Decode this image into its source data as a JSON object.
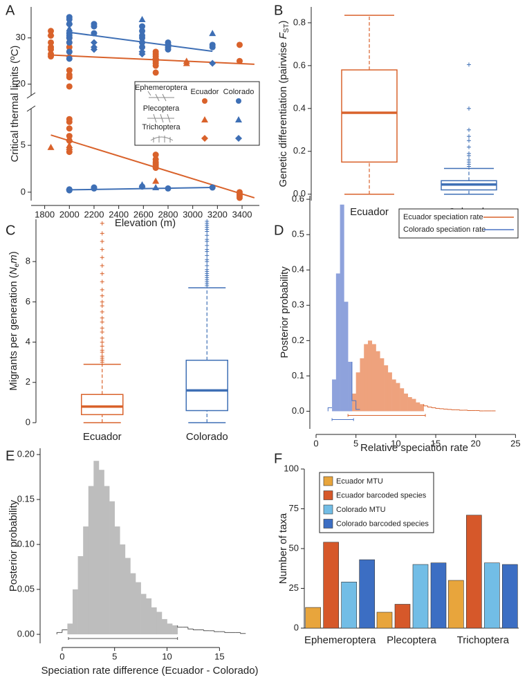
{
  "chart_data": [
    {
      "type": "scatter",
      "panel": "A",
      "xlabel": "Elevation (m)",
      "ylabel": "Critical thermal limits (ºC)",
      "xlim": [
        1690,
        3540
      ],
      "xticks": [
        1800,
        2000,
        2200,
        2400,
        2600,
        2800,
        3000,
        3200,
        3400
      ],
      "ylim": [
        -0.9,
        36.7
      ],
      "y_break": [
        8.7,
        18
      ],
      "yticks": [
        0,
        5,
        20,
        30
      ],
      "orders": [
        {
          "name": "Ephemeroptera",
          "marker": "circle"
        },
        {
          "name": "Plecoptera",
          "marker": "triangle"
        },
        {
          "name": "Trichoptera",
          "marker": "diamond"
        }
      ],
      "regions": [
        {
          "name": "Ecuador",
          "color": "#d9622b",
          "points": [
            {
              "x": [
                1850,
                1850,
                1850,
                1850,
                1850,
                1850,
                1850,
                2000,
                2000,
                2000,
                2000,
                2000,
                2000,
                2000,
                2000,
                2700,
                2700,
                2700,
                2700,
                2700,
                2700,
                2700,
                2700,
                3380,
                3380,
                2000,
                2000,
                2000,
                2000,
                2000,
                2000,
                2700,
                2700,
                2700,
                2700,
                2700,
                2700,
                3380,
                3380,
                3380,
                3380
              ],
              "y": [
                31.5,
                30.5,
                29,
                28,
                27.5,
                26.5,
                26,
                30,
                29,
                28,
                27,
                23,
                22,
                21.5,
                19.5,
                27,
                26.5,
                26,
                25.5,
                25,
                24.5,
                24,
                22.5,
                28.5,
                25,
                7.8,
                7.5,
                6.8,
                6,
                5.5,
                4.3,
                4,
                3.5,
                3.2,
                3,
                2.8,
                2.6,
                0,
                -0.2,
                -0.4,
                -0.6
              ]
            },
            {
              "x": [
                1850,
                1850,
                2000,
                2000,
                2700,
                2700,
                2950,
                2950
              ],
              "y": [
                31,
                4.8,
                5,
                4.8,
                26,
                1.2,
                25,
                24.5
              ]
            },
            {
              "x": [
                2000,
                2000
              ],
              "y": [
                26,
                5.5
              ]
            }
          ],
          "fits": [
            {
              "x": [
                1850,
                3500
              ],
              "y": [
                26.3,
                24.3
              ]
            },
            {
              "x": [
                1850,
                3500
              ],
              "y": [
                6.1,
                -0.6
              ]
            }
          ]
        },
        {
          "name": "Colorado",
          "color": "#3e6fb5",
          "points": [
            {
              "x": [
                2000,
                2000,
                2000,
                2000,
                2000,
                2000,
                2000,
                2000,
                2000,
                2200,
                2200,
                2200,
                2590,
                2590,
                2590,
                2590,
                2590,
                2590,
                2800,
                2800,
                2800,
                2800,
                3160,
                3160,
                2000,
                2000,
                2200,
                2200,
                2590,
                2800,
                3160
              ],
              "y": [
                34.5,
                34,
                33,
                31,
                30.5,
                30,
                29,
                27,
                25.5,
                33,
                32.5,
                31,
                32.5,
                31.5,
                30.5,
                30,
                29,
                28,
                29,
                28.5,
                28,
                27.5,
                28.5,
                28,
                0.2,
                0.3,
                0.4,
                0.5,
                0.6,
                0.4,
                0.5
              ]
            },
            {
              "x": [
                2000,
                2000,
                2590,
                3160,
                2590,
                2700
              ],
              "y": [
                33.5,
                32,
                34,
                31,
                0.8,
                0.5
              ]
            },
            {
              "x": [
                2200,
                2200,
                2200,
                2590,
                2590,
                2800,
                3160,
                2000
              ],
              "y": [
                29,
                28,
                27.5,
                27,
                26.5,
                28.5,
                24.5,
                0.25
              ]
            }
          ],
          "fits": [
            {
              "x": [
                2000,
                3160
              ],
              "y": [
                31.2,
                27.1
              ]
            },
            {
              "x": [
                2000,
                3160
              ],
              "y": [
                0.25,
                0.5
              ]
            }
          ]
        }
      ]
    },
    {
      "type": "box",
      "panel": "B",
      "ylabel_parts": [
        {
          "text": "Genetic differentiation (pairwise ",
          "style": "normal"
        },
        {
          "text": "F",
          "style": "italic"
        },
        {
          "text": "ST",
          "style": "sub"
        },
        {
          "text": ")",
          "style": "normal"
        }
      ],
      "ylim": [
        -0.03,
        0.874
      ],
      "yticks": [
        {
          "value": 0,
          "label": "0.0"
        },
        {
          "value": 0.2,
          "label": "0.2"
        },
        {
          "value": 0.4,
          "label": "0.4"
        },
        {
          "value": 0.6,
          "label": "0.6"
        },
        {
          "value": 0.8,
          "label": "0.8"
        }
      ],
      "categories": [
        "Ecuador",
        "Colorado"
      ],
      "boxes": [
        {
          "color": "#d9622b",
          "whisker_low": 0,
          "q1": 0.15,
          "median": 0.38,
          "q3": 0.58,
          "whisker_high": 0.835,
          "outliers": []
        },
        {
          "color": "#3e6fb5",
          "whisker_low": 0,
          "q1": 0.02,
          "median": 0.045,
          "q3": 0.063,
          "whisker_high": 0.12,
          "outliers": [
            0.13,
            0.14,
            0.15,
            0.16,
            0.18,
            0.19,
            0.22,
            0.25,
            0.27,
            0.3,
            0.4,
            0.605
          ]
        }
      ]
    },
    {
      "type": "box",
      "panel": "C",
      "ylabel_parts": [
        {
          "text": "Migrants per generation (",
          "style": "normal"
        },
        {
          "text": "N",
          "style": "italic"
        },
        {
          "text": "e",
          "style": "sub"
        },
        {
          "text": "m",
          "style": "italic"
        },
        {
          "text": ")",
          "style": "normal"
        }
      ],
      "ylim": [
        0,
        10.1
      ],
      "yticks": [
        0,
        2,
        4,
        6,
        8
      ],
      "categories": [
        "Ecuador",
        "Colorado"
      ],
      "boxes": [
        {
          "color": "#d9622b",
          "whisker_low": 0,
          "q1": 0.4,
          "median": 0.8,
          "q3": 1.4,
          "whisker_high": 2.9,
          "outliers": [
            3.0,
            3.1,
            3.2,
            3.3,
            3.5,
            3.6,
            3.8,
            4.0,
            4.2,
            4.5,
            4.7,
            5.0,
            5.2,
            5.5,
            5.8,
            6.0,
            6.3,
            6.6,
            7.0,
            7.4,
            7.8,
            8.2,
            8.6,
            9.0,
            9.4,
            9.9
          ]
        },
        {
          "color": "#3e6fb5",
          "whisker_low": 0,
          "q1": 0.6,
          "median": 1.6,
          "q3": 3.1,
          "whisker_high": 6.7,
          "outliers": [
            6.8,
            6.9,
            7.0,
            7.1,
            7.2,
            7.3,
            7.4,
            7.5,
            7.6,
            7.8,
            8.0,
            8.1,
            8.3,
            8.5,
            8.6,
            8.8,
            9.0,
            9.1,
            9.3,
            9.5,
            9.6,
            9.7,
            9.8,
            9.9,
            10.0
          ]
        }
      ]
    },
    {
      "type": "histogram",
      "panel": "D",
      "xlabel": "Relative speciation rate",
      "ylabel": "Posterior probability",
      "xlim": [
        -0.78,
        25.4
      ],
      "xticks": [
        0,
        5,
        10,
        15,
        20,
        25
      ],
      "ylim": [
        -0.05,
        0.61
      ],
      "yticks": [
        {
          "value": 0,
          "label": "0.0"
        },
        {
          "value": 0.1,
          "label": "0.1"
        },
        {
          "value": 0.2,
          "label": "0.2"
        },
        {
          "value": 0.3,
          "label": "0.3"
        },
        {
          "value": 0.4,
          "label": "0.4"
        },
        {
          "value": 0.5,
          "label": "0.5"
        },
        {
          "value": 0.6,
          "label": "0.6"
        }
      ],
      "legend": "upper right",
      "series": [
        {
          "name": "Ecuador speciation rate",
          "color": "#d9622b",
          "fill": "#eea27d",
          "bins": [
            4,
            4.5,
            5,
            5.5,
            6,
            6.5,
            7,
            7.5,
            8,
            8.5,
            9,
            9.5,
            10,
            10.5,
            11,
            11.5,
            12,
            12.5,
            13,
            13.5,
            14,
            14.5,
            15,
            15.5,
            16,
            16.5,
            17,
            17.5,
            18,
            18.5,
            19,
            19.5,
            20,
            20.5,
            21,
            21.5,
            22,
            22.5
          ],
          "counts": [
            0.01,
            0.05,
            0.11,
            0.15,
            0.19,
            0.2,
            0.19,
            0.17,
            0.15,
            0.13,
            0.11,
            0.09,
            0.08,
            0.065,
            0.05,
            0.04,
            0.035,
            0.025,
            0.02,
            0.015,
            0.012,
            0.01,
            0.008,
            0.007,
            0.006,
            0.005,
            0.004,
            0.004,
            0.003,
            0.003,
            0.002,
            0.002,
            0.002,
            0.001,
            0.001,
            0.001,
            0.001
          ],
          "hpd": [
            4.0,
            13.7
          ]
        },
        {
          "name": "Colorado speciation rate",
          "color": "#4a72c4",
          "fill": "#8ea2dc",
          "bins": [
            1.5,
            2,
            2.5,
            3,
            3.5,
            4,
            4.5,
            5,
            5.5
          ],
          "counts": [
            0.01,
            0.09,
            0.39,
            0.585,
            0.31,
            0.14,
            0.03,
            0.005
          ],
          "hpd": [
            2.0,
            4.7
          ]
        }
      ]
    },
    {
      "type": "histogram",
      "panel": "E",
      "xlabel": "Speciation rate difference (Ecuador - Colorado)",
      "ylabel": "Posterior probability",
      "xlim": [
        -2.1,
        18.8
      ],
      "xticks": [
        0,
        5,
        10,
        15
      ],
      "ylim": [
        -0.01,
        0.207
      ],
      "yticks": [
        {
          "value": 0,
          "label": "0.00"
        },
        {
          "value": 0.05,
          "label": "0.05"
        },
        {
          "value": 0.1,
          "label": "0.10"
        },
        {
          "value": 0.15,
          "label": "0.15"
        },
        {
          "value": 0.2,
          "label": "0.20"
        }
      ],
      "series": [
        {
          "color": "#555555",
          "fill": "#bdbdbd",
          "bins": [
            -0.5,
            0,
            0.5,
            1,
            1.5,
            2,
            2.5,
            3,
            3.5,
            4,
            4.5,
            5,
            5.5,
            6,
            6.5,
            7,
            7.5,
            8,
            8.5,
            9,
            9.5,
            10,
            10.5,
            11,
            11.5,
            12,
            12.5,
            13,
            13.5,
            14,
            14.5,
            15,
            15.5,
            16,
            16.5,
            17,
            17.5
          ],
          "counts": [
            0.002,
            0.005,
            0.012,
            0.05,
            0.087,
            0.12,
            0.165,
            0.193,
            0.183,
            0.165,
            0.148,
            0.12,
            0.1,
            0.085,
            0.068,
            0.058,
            0.045,
            0.04,
            0.03,
            0.025,
            0.017,
            0.012,
            0.01,
            0.008,
            0.008,
            0.006,
            0.005,
            0.005,
            0.004,
            0.004,
            0.003,
            0.003,
            0.002,
            0.002,
            0.002,
            0.001
          ],
          "hpd": [
            0.6,
            11.0
          ]
        }
      ]
    },
    {
      "type": "bar",
      "panel": "F",
      "ylabel": "Number of taxa",
      "ylim": [
        0,
        100
      ],
      "yticks": [
        0,
        25,
        50,
        75,
        100
      ],
      "categories": [
        "Ephemeroptera",
        "Plecoptera",
        "Trichoptera"
      ],
      "legend": "upper left",
      "series": [
        {
          "name": "Ecuador MTU",
          "color": "#e8a53c",
          "values": [
            13,
            10,
            30
          ]
        },
        {
          "name": "Ecuador barcoded species",
          "color": "#d6582a",
          "values": [
            54,
            15,
            71
          ]
        },
        {
          "name": "Colorado MTU",
          "color": "#72bde6",
          "values": [
            29,
            40,
            41
          ]
        },
        {
          "name": "Colorado barcoded species",
          "color": "#3c6ec3",
          "values": [
            43,
            41,
            40
          ]
        }
      ]
    }
  ]
}
